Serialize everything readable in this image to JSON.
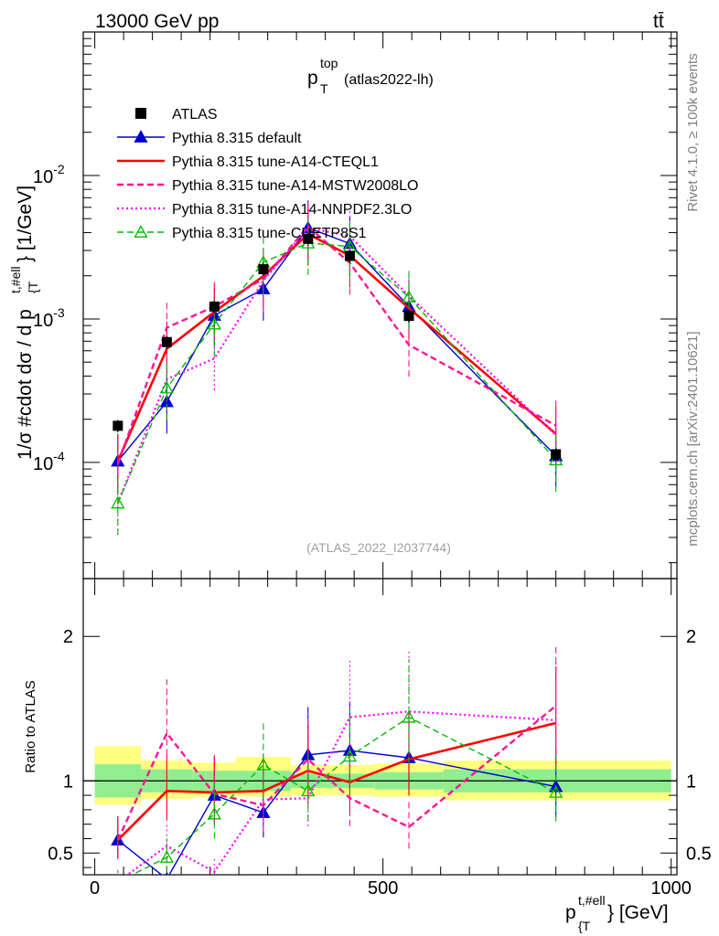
{
  "header": {
    "energy_label": "13000 GeV pp",
    "process_label": "tt̄",
    "plot_title_main": "p",
    "plot_title_sup": "top",
    "plot_title_sub": "T",
    "plot_title_tag": "(atlas2022-lh)",
    "analysis_id": "(ATLAS_2022_I2037744)"
  },
  "side_labels": {
    "rivet": "Rivet 4.1.0, ≥ 100k events",
    "mcplots": "mcplots.cern.ch [arXiv:2401.10621]"
  },
  "axis_labels": {
    "y_main": "1/σ #cdot dσ / d p",
    "y_main_sup": "t,#ell",
    "y_main_sub": "{T",
    "y_main_unit": "} [1/GeV]",
    "y_ratio": "Ratio to ATLAS",
    "x": "p",
    "x_sup": "t,#ell",
    "x_sub": "{T",
    "x_unit": "} [GeV]"
  },
  "colors": {
    "data": "#000000",
    "default": "#0000cc",
    "a14_cteql1": "#ff0000",
    "a14_mstw": "#ff1493",
    "a14_nnpdf": "#ff00ff",
    "cuetp8s1": "#00bb00",
    "band_inner": "#90ee90",
    "band_outer": "#ffff80"
  },
  "chart_data": {
    "type": "line",
    "x_range": [
      -20,
      1010
    ],
    "x_scale": "linear",
    "y_main_scale": "log",
    "y_main_range": [
      1.55e-05,
      0.1
    ],
    "y_ratio_range": [
      0.35,
      2.4
    ],
    "x_ticks": [
      "0",
      "500",
      "1000"
    ],
    "x_tick_values": [
      0,
      500,
      1000
    ],
    "y_main_tick_labels": [
      "10^-4",
      "10^-3",
      "10^-2"
    ],
    "y_ratio_ticks": [
      "0.5",
      "1",
      "2"
    ],
    "y_ratio_tick_values": [
      0.5,
      1,
      2
    ],
    "x": [
      40,
      125,
      207.5,
      292.5,
      370,
      442.5,
      545,
      800
    ],
    "bin_edges": [
      0,
      80,
      170,
      245,
      340,
      400,
      485,
      605,
      1000
    ],
    "data": {
      "name": "ATLAS",
      "values": [
        0.00018,
        0.00069,
        0.00122,
        0.00222,
        0.00362,
        0.00275,
        0.00105,
        0.000114
      ]
    },
    "ratio_band_inner": [
      [
        0.885,
        1.115
      ],
      [
        0.92,
        1.08
      ],
      [
        0.93,
        1.07
      ],
      [
        0.93,
        1.07
      ],
      [
        0.95,
        1.05
      ],
      [
        0.95,
        1.05
      ],
      [
        0.94,
        1.06
      ],
      [
        0.92,
        1.08
      ]
    ],
    "ratio_band_outer": [
      [
        0.835,
        1.24
      ],
      [
        0.875,
        1.14
      ],
      [
        0.885,
        1.125
      ],
      [
        0.89,
        1.165
      ],
      [
        0.9,
        1.11
      ],
      [
        0.9,
        1.11
      ],
      [
        0.89,
        1.12
      ],
      [
        0.865,
        1.14
      ]
    ],
    "series": [
      {
        "key": "default",
        "name": "Pythia 8.315 default",
        "style": "solid",
        "width": 1.4,
        "marker": "triangle",
        "values": [
          0.000102,
          0.000265,
          0.00106,
          0.00162,
          0.00432,
          0.00335,
          0.00122,
          0.000111
        ],
        "ratio": [
          0.59,
          0.32,
          0.9,
          0.78,
          1.18,
          1.21,
          1.16,
          0.96
        ]
      },
      {
        "key": "a14_cteql1",
        "name": "Pythia 8.315 tune-A14-CTEQL1",
        "style": "solid",
        "width": 2.6,
        "marker": "none",
        "values": [
          0.000102,
          0.00062,
          0.00112,
          0.00199,
          0.00391,
          0.00276,
          0.00119,
          0.000158
        ],
        "ratio": [
          0.59,
          0.93,
          0.92,
          0.93,
          1.07,
          0.99,
          1.15,
          1.4
        ]
      },
      {
        "key": "a14_mstw",
        "name": "Pythia 8.315 tune-A14-MSTW2008LO",
        "style": "dashed",
        "width": 2.4,
        "marker": "none",
        "values": [
          9.8e-05,
          0.00087,
          0.00122,
          0.0019,
          0.0044,
          0.00246,
          0.00066,
          0.000181
        ],
        "ratio": [
          0.59,
          1.33,
          0.91,
          0.83,
          1.15,
          0.88,
          0.68,
          1.52
        ]
      },
      {
        "key": "a14_nnpdf",
        "name": "Pythia 8.315 tune-A14-NNPDF2.3LO",
        "style": "dotted",
        "width": 2.2,
        "marker": "none",
        "values": [
          5.2e-05,
          0.00038,
          0.00053,
          0.00185,
          0.00432,
          0.00378,
          0.00145,
          0.000155
        ],
        "ratio": [
          0.3,
          0.55,
          0.37,
          0.87,
          0.88,
          1.44,
          1.48,
          1.42
        ]
      },
      {
        "key": "cuetp8s1",
        "name": "Pythia 8.315 tune-CUETP8S1",
        "style": "dashed",
        "width": 1.4,
        "marker": "open-triangle",
        "values": [
          5.2e-05,
          0.00033,
          0.00092,
          0.00248,
          0.00338,
          0.0032,
          0.00142,
          0.000104
        ],
        "ratio": [
          0.3,
          0.47,
          0.77,
          1.11,
          0.93,
          1.17,
          1.44,
          0.92
        ]
      }
    ]
  }
}
